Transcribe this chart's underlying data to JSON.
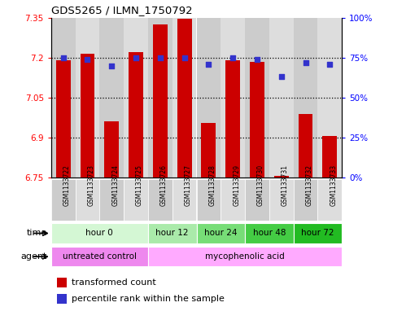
{
  "title": "GDS5265 / ILMN_1750792",
  "samples": [
    "GSM1133722",
    "GSM1133723",
    "GSM1133724",
    "GSM1133725",
    "GSM1133726",
    "GSM1133727",
    "GSM1133728",
    "GSM1133729",
    "GSM1133730",
    "GSM1133731",
    "GSM1133732",
    "GSM1133733"
  ],
  "bar_values": [
    7.19,
    7.215,
    6.96,
    7.22,
    7.325,
    7.345,
    6.955,
    7.19,
    7.185,
    6.755,
    6.99,
    6.905
  ],
  "dot_values": [
    75,
    74,
    70,
    75,
    75,
    75,
    71,
    75,
    74,
    63,
    72,
    71
  ],
  "bar_color": "#cc0000",
  "dot_color": "#3333cc",
  "ylim_left": [
    6.75,
    7.35
  ],
  "ylim_right": [
    0,
    100
  ],
  "yticks_left": [
    6.75,
    6.9,
    7.05,
    7.2,
    7.35
  ],
  "yticks_right": [
    0,
    25,
    50,
    75,
    100
  ],
  "ytick_labels_right": [
    "0%",
    "25%",
    "50%",
    "75%",
    "100%"
  ],
  "hline_values": [
    7.2,
    7.05,
    6.9
  ],
  "time_groups": [
    {
      "label": "hour 0",
      "start": 0,
      "end": 4,
      "color": "#d4f7d4"
    },
    {
      "label": "hour 12",
      "start": 4,
      "end": 6,
      "color": "#aaeaaa"
    },
    {
      "label": "hour 24",
      "start": 6,
      "end": 8,
      "color": "#77dd77"
    },
    {
      "label": "hour 48",
      "start": 8,
      "end": 10,
      "color": "#44cc44"
    },
    {
      "label": "hour 72",
      "start": 10,
      "end": 12,
      "color": "#22bb22"
    }
  ],
  "agent_groups": [
    {
      "label": "untreated control",
      "start": 0,
      "end": 4,
      "color": "#ee88ee"
    },
    {
      "label": "mycophenolic acid",
      "start": 4,
      "end": 12,
      "color": "#ffaaff"
    }
  ],
  "legend_bar_label": "transformed count",
  "legend_dot_label": "percentile rank within the sample",
  "time_label": "time",
  "agent_label": "agent",
  "col_colors": [
    "#cccccc",
    "#dddddd"
  ]
}
